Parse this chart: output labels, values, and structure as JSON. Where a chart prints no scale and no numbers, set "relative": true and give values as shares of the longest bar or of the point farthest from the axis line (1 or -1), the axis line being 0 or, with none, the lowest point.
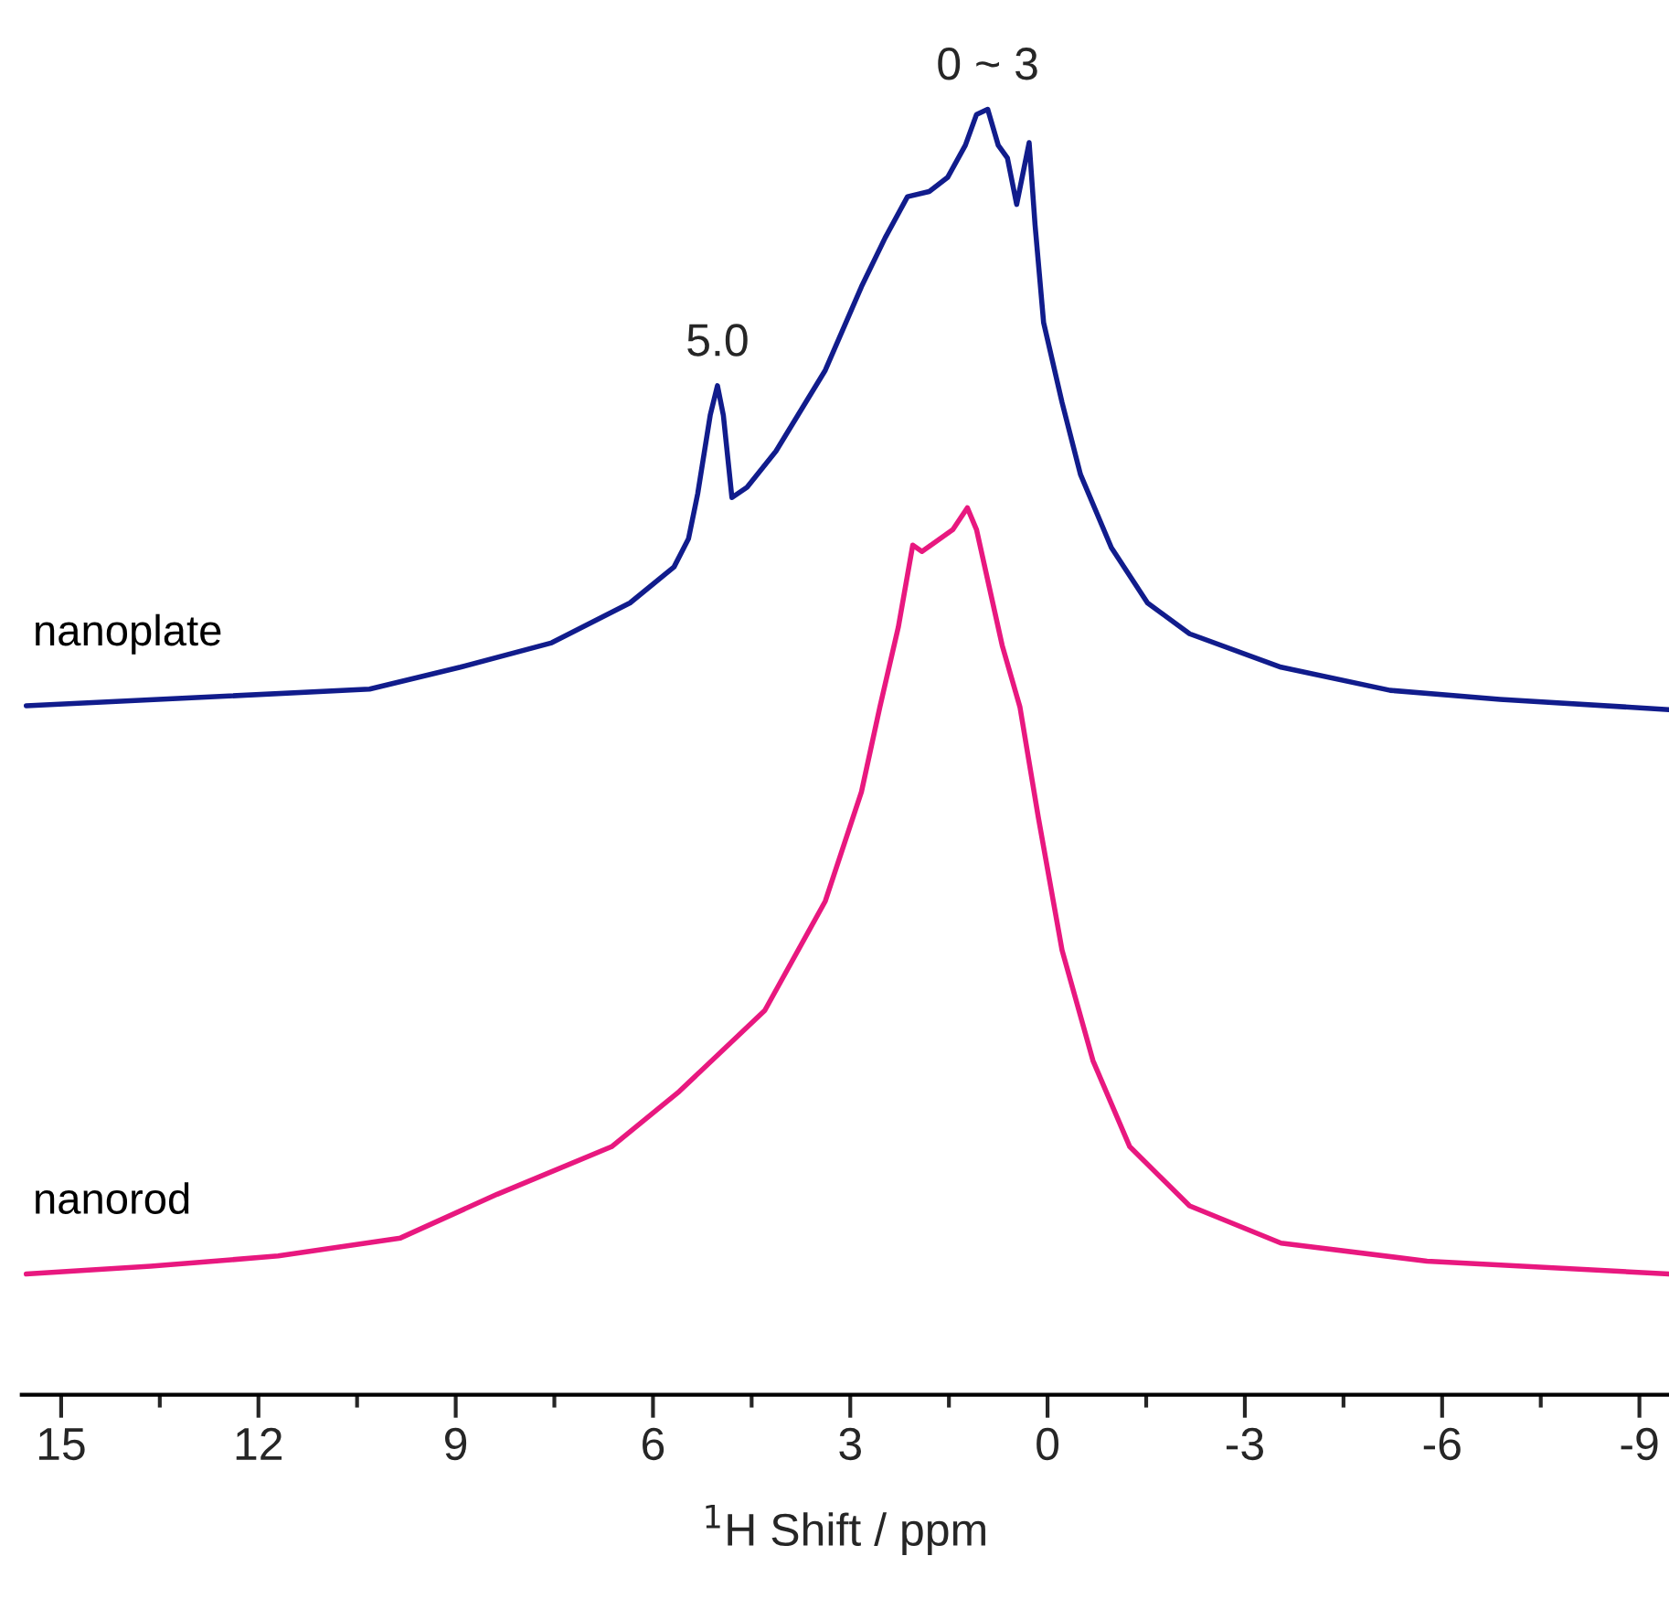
{
  "chart_data": {
    "type": "line",
    "relative": true,
    "xlabel": "$^{1}$H Shift / ppm",
    "xlim": [
      15.6,
      -9.45
    ],
    "xticks": [
      15,
      {
        "value": 13.5,
        "label": null
      },
      12,
      {
        "value": 10.5,
        "label": null
      },
      9,
      {
        "value": 7.5,
        "label": null
      },
      6,
      {
        "value": 4.5,
        "label": null
      },
      3,
      {
        "value": 1.5,
        "label": null
      },
      0,
      {
        "value": -1.5,
        "label": null
      },
      {
        "value": -3,
        "label": "-3"
      },
      {
        "value": -4.5,
        "label": null
      },
      {
        "value": -6,
        "label": "-6"
      },
      {
        "value": -7.5,
        "label": null
      },
      {
        "value": -9,
        "label": "-9"
      }
    ],
    "tick_labels": "x",
    "grid": false,
    "legend": false,
    "marker": "none",
    "line_style": "solid",
    "annotations": [
      {
        "text": "5.0",
        "x": 5.02,
        "y": 0.785
      },
      {
        "text": "0 ~ 3",
        "x": 0.91,
        "y": 1.0
      }
    ],
    "series": [
      {
        "name": "nanoplate",
        "color": "#111c8c",
        "x": [
          15.53,
          13.09,
          10.31,
          8.93,
          7.54,
          6.35,
          5.68,
          5.46,
          5.32,
          5.13,
          5.02,
          4.93,
          4.8,
          4.57,
          4.13,
          3.38,
          2.83,
          2.47,
          2.13,
          1.8,
          1.52,
          1.25,
          1.08,
          0.91,
          0.75,
          0.61,
          0.47,
          0.28,
          0.19,
          0.06,
          -0.22,
          -0.5,
          -0.97,
          -1.52,
          -2.16,
          -3.55,
          -5.21,
          -6.88,
          -9.45
        ],
        "values": [
          0.536,
          0.542,
          0.549,
          0.566,
          0.585,
          0.616,
          0.644,
          0.666,
          0.701,
          0.762,
          0.785,
          0.762,
          0.698,
          0.706,
          0.734,
          0.797,
          0.862,
          0.9,
          0.932,
          0.936,
          0.947,
          0.972,
          0.996,
          1.0,
          0.972,
          0.962,
          0.926,
          0.974,
          0.91,
          0.834,
          0.772,
          0.716,
          0.659,
          0.616,
          0.592,
          0.566,
          0.548,
          0.541,
          0.533
        ]
      },
      {
        "name": "nanorod",
        "color": "#e8187f",
        "x": [
          15.53,
          13.64,
          11.7,
          9.84,
          8.37,
          6.63,
          5.6,
          4.3,
          3.38,
          2.83,
          2.55,
          2.27,
          2.05,
          1.91,
          1.44,
          1.22,
          1.08,
          0.69,
          0.42,
          0.14,
          -0.22,
          -0.69,
          -1.25,
          -2.16,
          -3.55,
          -5.77,
          -9.45
        ],
        "values": [
          0.094,
          0.1,
          0.108,
          0.122,
          0.156,
          0.193,
          0.236,
          0.299,
          0.384,
          0.469,
          0.535,
          0.597,
          0.661,
          0.656,
          0.673,
          0.69,
          0.673,
          0.583,
          0.535,
          0.449,
          0.346,
          0.26,
          0.193,
          0.147,
          0.118,
          0.104,
          0.094
        ]
      }
    ]
  }
}
